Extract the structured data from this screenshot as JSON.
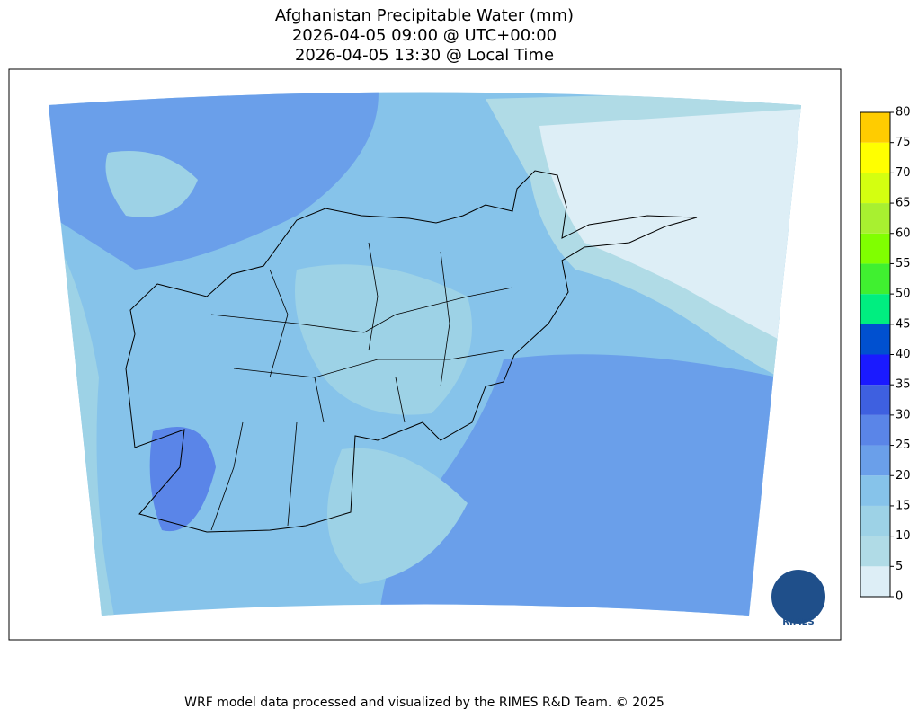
{
  "title": [
    "Afghanistan Precipitable Water (mm)",
    "2026-04-05 09:00 @ UTC+00:00",
    "2026-04-05 13:30 @ Local Time"
  ],
  "colorbar": {
    "lim": [
      0,
      80
    ],
    "ticks": [
      0,
      5,
      10,
      15,
      20,
      25,
      30,
      35,
      40,
      45,
      50,
      55,
      60,
      65,
      70,
      75,
      80
    ],
    "colors": [
      "#ddeef6",
      "#b0dbe6",
      "#9dd2e6",
      "#86c3ea",
      "#6a9fea",
      "#5a85e8",
      "#3e60e0",
      "#1a1aff",
      "#0050d0",
      "#00ee80",
      "#40f030",
      "#80ff00",
      "#a8f030",
      "#d4ff10",
      "#ffff00",
      "#ffcc00"
    ]
  },
  "logo": "RIMES",
  "footer": "WRF model data processed and visualized by the RIMES R&D Team. © 2025"
}
